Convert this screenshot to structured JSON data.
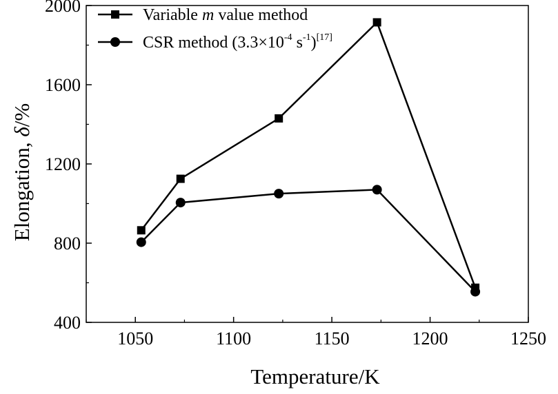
{
  "chart_data": {
    "type": "line",
    "title": "",
    "xlabel": "Temperature/K",
    "ylabel": {
      "prefix": "Elongation, ",
      "symbol": "δ",
      "suffix": "/%"
    },
    "xlim": [
      1025,
      1250
    ],
    "ylim": [
      400,
      2000
    ],
    "xticks": [
      1050,
      1100,
      1150,
      1200,
      1250
    ],
    "yticks": [
      400,
      800,
      1200,
      1600,
      2000
    ],
    "grid": false,
    "legend_position": "top-left",
    "line_color": "#000000",
    "series": [
      {
        "name": "Variable m value method",
        "legend": {
          "pre": "Variable ",
          "italic": "m",
          "post": " value method"
        },
        "marker": "square",
        "x": [
          1053,
          1073,
          1123,
          1173,
          1223
        ],
        "y": [
          865,
          1125,
          1430,
          1915,
          575
        ]
      },
      {
        "name": "CSR method (3.3×10-4 s-1)[17]",
        "legend": {
          "pre": "CSR method (3.3×10",
          "sup1": "-4",
          "mid": " s",
          "sup2": "-1",
          "close": ")",
          "sup3": "[17]"
        },
        "marker": "circle",
        "x": [
          1053,
          1073,
          1123,
          1173,
          1223
        ],
        "y": [
          805,
          1005,
          1050,
          1070,
          555
        ]
      }
    ]
  }
}
